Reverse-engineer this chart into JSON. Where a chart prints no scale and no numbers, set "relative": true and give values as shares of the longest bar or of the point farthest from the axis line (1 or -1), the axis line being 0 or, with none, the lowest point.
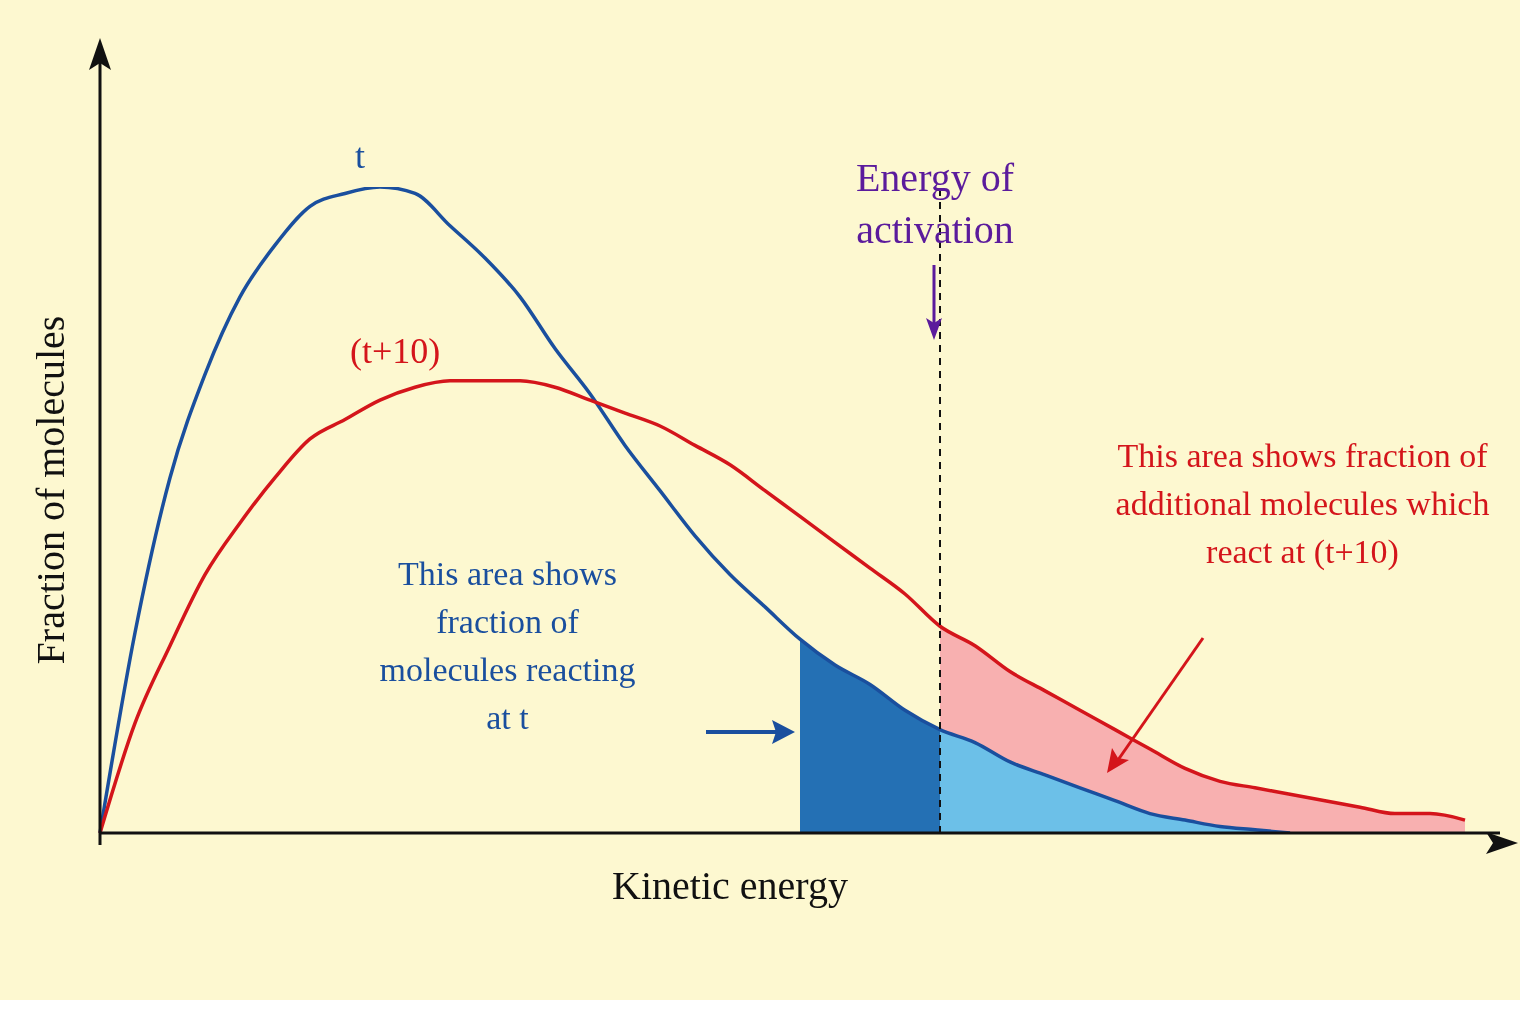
{
  "chart_data": {
    "type": "line",
    "relative": true,
    "xlabel": "Kinetic energy",
    "ylabel": "Fraction of molecules",
    "legend": false,
    "grid": false,
    "categories": [
      null,
      null,
      null,
      null,
      null,
      null,
      null,
      null,
      null,
      null,
      null,
      null,
      null,
      null,
      null,
      null,
      null,
      null,
      null,
      null,
      null,
      null,
      null,
      null,
      null,
      null,
      null,
      null,
      null,
      null,
      null,
      null,
      null,
      null,
      null,
      null,
      null,
      null,
      null,
      null,
      null
    ],
    "series": [
      {
        "type": "area",
        "color": "#f8b0b0",
        "values": [
          null,
          null,
          null,
          null,
          null,
          null,
          null,
          null,
          null,
          null,
          null,
          null,
          null,
          null,
          null,
          null,
          null,
          null,
          null,
          null,
          null,
          null,
          null,
          null,
          0.32,
          0.29,
          0.25,
          0.22,
          0.19,
          0.16,
          0.13,
          0.1,
          0.08,
          0.07,
          0.06,
          0.05,
          0.04,
          0.03,
          0.03,
          0.02,
          null
        ]
      },
      {
        "type": "area",
        "color": "#6cc0e8",
        "values": [
          null,
          null,
          null,
          null,
          null,
          null,
          null,
          null,
          null,
          null,
          null,
          null,
          null,
          null,
          null,
          null,
          null,
          null,
          null,
          null,
          null,
          null,
          null,
          null,
          0.16,
          0.14,
          0.11,
          0.09,
          0.07,
          0.05,
          0.03,
          0.02,
          0.01,
          0.005,
          0,
          null,
          null,
          null,
          null,
          null,
          null
        ]
      },
      {
        "type": "area",
        "color": "#2470b4",
        "values": [
          null,
          null,
          null,
          null,
          null,
          null,
          null,
          null,
          null,
          null,
          null,
          null,
          null,
          null,
          null,
          null,
          null,
          null,
          null,
          null,
          0.3,
          0.26,
          0.23,
          0.19,
          0.16,
          null,
          null,
          null,
          null,
          null,
          null,
          null,
          null,
          null,
          null,
          null,
          null,
          null,
          null,
          null,
          null
        ]
      },
      {
        "name": "t",
        "color": "#1a4f9e",
        "values": [
          0,
          0.31,
          0.55,
          0.71,
          0.83,
          0.91,
          0.97,
          0.99,
          1,
          0.99,
          0.94,
          0.89,
          0.83,
          0.75,
          0.68,
          0.6,
          0.53,
          0.46,
          0.4,
          0.35,
          0.3,
          0.26,
          0.23,
          0.19,
          0.16,
          0.14,
          0.11,
          0.09,
          0.07,
          0.05,
          0.03,
          0.02,
          0.01,
          0.005,
          0,
          null,
          null,
          null,
          null,
          null,
          null
        ]
      },
      {
        "name": "(t+10)",
        "color": "#d4151b",
        "values": [
          0,
          0.17,
          0.29,
          0.4,
          0.48,
          0.55,
          0.61,
          0.64,
          0.67,
          0.69,
          0.7,
          0.7,
          0.7,
          0.69,
          0.67,
          0.65,
          0.63,
          0.6,
          0.57,
          0.53,
          0.49,
          0.45,
          0.41,
          0.37,
          0.32,
          0.29,
          0.25,
          0.22,
          0.19,
          0.16,
          0.13,
          0.1,
          0.08,
          0.07,
          0.06,
          0.05,
          0.04,
          0.03,
          0.03,
          0.02,
          null
        ]
      }
    ],
    "annotations": [
      "This area shows fraction of molecules reacting at t",
      "This area shows fraction of additional molecules which react at (t+10)",
      "Energy of activation"
    ]
  }
}
